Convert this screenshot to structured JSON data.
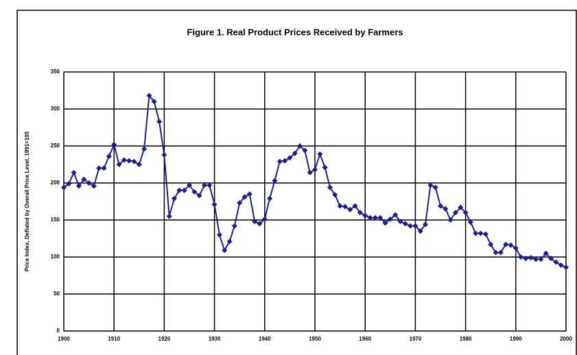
{
  "chart_data": {
    "type": "line",
    "title": "Figure 1. Real Product Prices Received by Farmers",
    "y_label": "Price Index, Deflated by Overall Price Level, 1991=100",
    "x": [
      1900,
      1901,
      1902,
      1903,
      1904,
      1905,
      1906,
      1907,
      1908,
      1909,
      1910,
      1911,
      1912,
      1913,
      1914,
      1915,
      1916,
      1917,
      1918,
      1919,
      1920,
      1921,
      1922,
      1923,
      1924,
      1925,
      1926,
      1927,
      1928,
      1929,
      1930,
      1931,
      1932,
      1933,
      1934,
      1935,
      1936,
      1937,
      1938,
      1939,
      1940,
      1941,
      1942,
      1943,
      1944,
      1945,
      1946,
      1947,
      1948,
      1949,
      1950,
      1951,
      1952,
      1953,
      1954,
      1955,
      1956,
      1957,
      1958,
      1959,
      1960,
      1961,
      1962,
      1963,
      1964,
      1965,
      1966,
      1967,
      1968,
      1969,
      1970,
      1971,
      1972,
      1973,
      1974,
      1975,
      1976,
      1977,
      1978,
      1979,
      1980,
      1981,
      1982,
      1983,
      1984,
      1985,
      1986,
      1987,
      1988,
      1989,
      1990,
      1991,
      1992,
      1993,
      1994,
      1995,
      1996,
      1997,
      1998,
      1999,
      2000
    ],
    "series": [
      {
        "name": "Price Index",
        "color": "#1c1c8c",
        "values": [
          194,
          199,
          214,
          196,
          205,
          200,
          196,
          220,
          220,
          236,
          252,
          225,
          231,
          230,
          229,
          225,
          246,
          318,
          310,
          283,
          238,
          155,
          179,
          190,
          190,
          197,
          188,
          183,
          197,
          197,
          171,
          130,
          109,
          121,
          142,
          173,
          181,
          185,
          148,
          145,
          151,
          179,
          203,
          229,
          230,
          234,
          240,
          250,
          244,
          214,
          218,
          239,
          221,
          194,
          184,
          169,
          168,
          164,
          169,
          160,
          156,
          153,
          153,
          153,
          146,
          151,
          157,
          148,
          145,
          142,
          142,
          135,
          144,
          197,
          194,
          169,
          165,
          150,
          160,
          167,
          160,
          147,
          132,
          132,
          131,
          117,
          106,
          106,
          117,
          116,
          112,
          100,
          98,
          99,
          97,
          97,
          105,
          98,
          93,
          89,
          86
        ]
      }
    ],
    "xlim": [
      1900,
      2000
    ],
    "xticks": [
      1900,
      1910,
      1920,
      1930,
      1940,
      1950,
      1960,
      1970,
      1980,
      1990,
      2000
    ],
    "ylim": [
      0,
      350
    ],
    "yticks": [
      0,
      50,
      100,
      150,
      200,
      250,
      300,
      350
    ],
    "grid": true
  }
}
